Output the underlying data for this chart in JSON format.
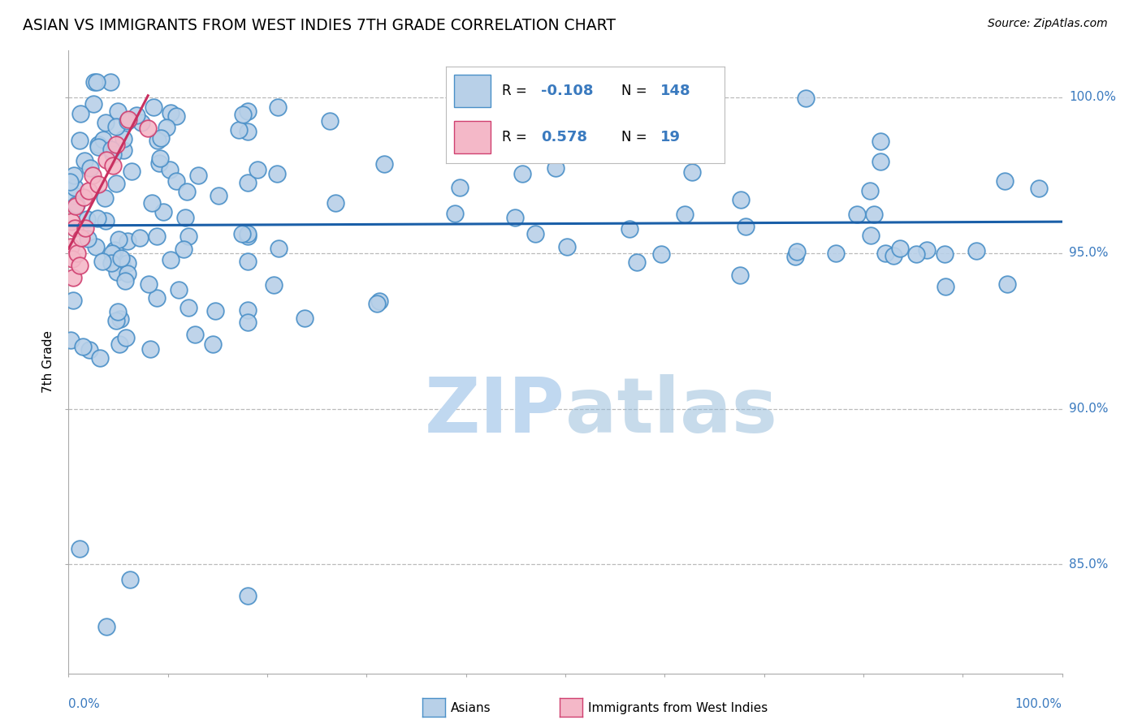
{
  "title": "ASIAN VS IMMIGRANTS FROM WEST INDIES 7TH GRADE CORRELATION CHART",
  "source": "Source: ZipAtlas.com",
  "ylabel": "7th Grade",
  "legend_r_asian": "-0.108",
  "legend_n_asian": "148",
  "legend_r_wi": "0.578",
  "legend_n_wi": "19",
  "asian_face_color": "#b8d0e8",
  "asian_edge_color": "#4a90c8",
  "wi_face_color": "#f4b8c8",
  "wi_edge_color": "#d04070",
  "asian_line_color": "#1a5fa8",
  "wi_line_color": "#c83060",
  "label_color": "#3a7abf",
  "watermark_color": "#c0d8f0",
  "xlim": [
    0.0,
    1.0
  ],
  "ylim": [
    0.815,
    1.015
  ],
  "yticks": [
    0.85,
    0.9,
    0.95,
    1.0
  ],
  "ytick_labels": [
    "85.0%",
    "90.0%",
    "95.0%",
    "100.0%"
  ]
}
